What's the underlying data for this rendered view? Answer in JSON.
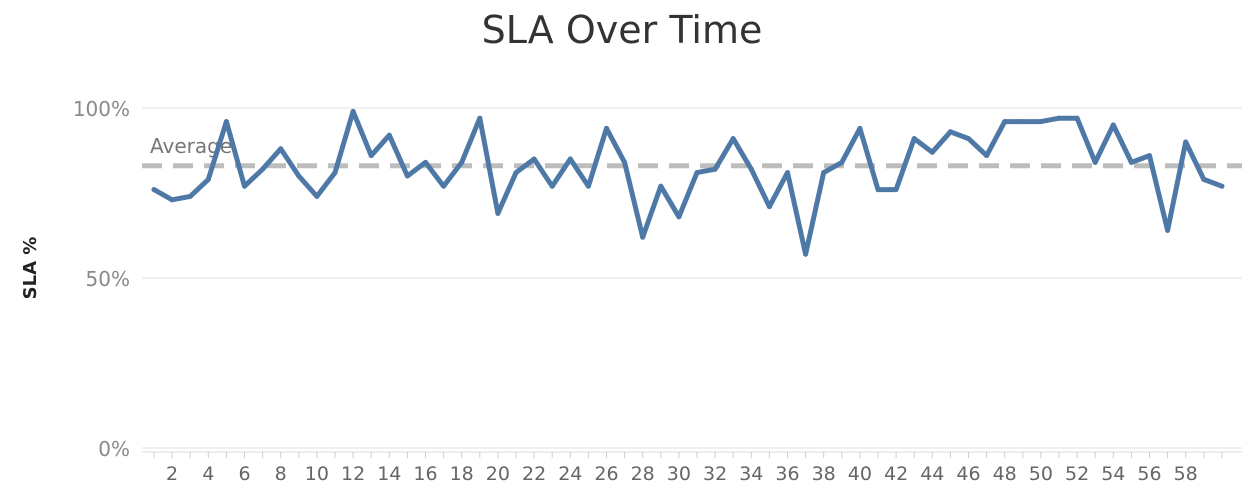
{
  "chart_data": {
    "type": "line",
    "title": "SLA Over Time",
    "ylabel": "SLA %",
    "xlabel": "",
    "ylim": [
      0,
      100
    ],
    "y_ticks": [
      {
        "value": 100,
        "label": "100%"
      },
      {
        "value": 50,
        "label": "50%"
      },
      {
        "value": 0,
        "label": "0%"
      }
    ],
    "x_ticks": [
      "2",
      "4",
      "6",
      "8",
      "10",
      "12",
      "14",
      "16",
      "18",
      "20",
      "22",
      "24",
      "26",
      "28",
      "30",
      "32",
      "34",
      "36",
      "38",
      "40",
      "42",
      "44",
      "46",
      "48",
      "50",
      "52",
      "54",
      "56",
      "58"
    ],
    "reference_line": {
      "label": "Average",
      "value": 83,
      "style": "dashed"
    },
    "grid": "horizontal",
    "series": [
      {
        "color": "#4e79a7",
        "x": [
          1,
          2,
          3,
          4,
          5,
          6,
          7,
          8,
          9,
          10,
          11,
          12,
          13,
          14,
          15,
          16,
          17,
          18,
          19,
          20,
          21,
          22,
          23,
          24,
          25,
          26,
          27,
          28,
          29,
          30,
          31,
          32,
          33,
          34,
          35,
          36,
          37,
          38,
          39,
          40,
          41,
          42,
          43,
          44,
          45,
          46,
          47,
          48,
          49,
          50,
          51,
          52,
          53,
          54,
          55,
          56,
          57,
          58,
          59,
          60
        ],
        "values": [
          76,
          73,
          74,
          79,
          96,
          77,
          82,
          88,
          80,
          74,
          81,
          99,
          86,
          92,
          80,
          84,
          77,
          84,
          97,
          69,
          81,
          85,
          77,
          85,
          77,
          94,
          84,
          62,
          77,
          68,
          81,
          82,
          91,
          82,
          71,
          81,
          57,
          81,
          84,
          94,
          76,
          76,
          91,
          87,
          93,
          91,
          86,
          96,
          96,
          96,
          97,
          97,
          84,
          95,
          84,
          86,
          64,
          90,
          79,
          77
        ]
      }
    ]
  }
}
